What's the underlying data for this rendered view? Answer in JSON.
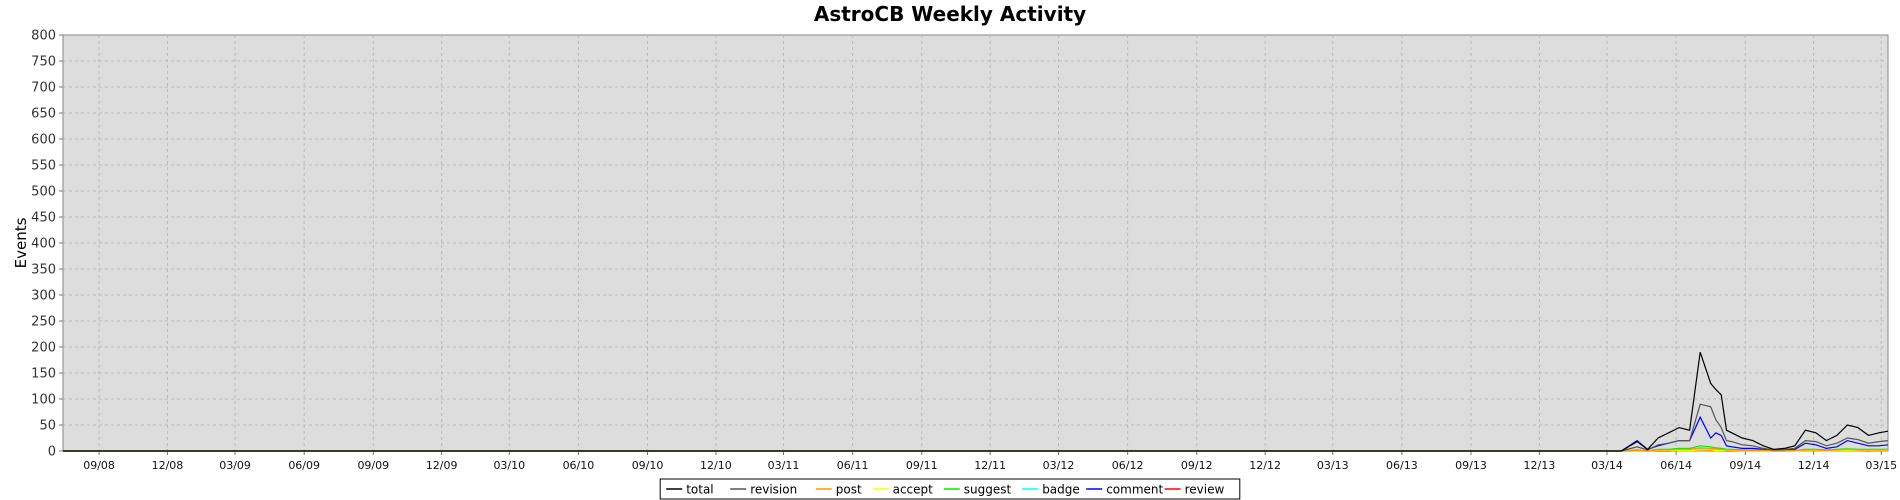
{
  "chart_data": {
    "type": "line",
    "title": "AstroCB Weekly Activity",
    "xlabel": "",
    "ylabel": "Events",
    "ylim": [
      0,
      800
    ],
    "yticks": [
      0,
      50,
      100,
      150,
      200,
      250,
      300,
      350,
      400,
      450,
      500,
      550,
      600,
      650,
      700,
      750,
      800
    ],
    "xlim": [
      "2008-07-15",
      "2015-03-10"
    ],
    "xticks": [
      "09/08",
      "12/08",
      "03/09",
      "06/09",
      "09/09",
      "12/09",
      "03/10",
      "06/10",
      "09/10",
      "12/10",
      "03/11",
      "06/11",
      "09/11",
      "12/11",
      "03/12",
      "06/12",
      "09/12",
      "12/12",
      "03/13",
      "06/13",
      "09/13",
      "12/13",
      "03/14",
      "06/14",
      "09/14",
      "12/14",
      "03/15"
    ],
    "grid": true,
    "legend": "bottom",
    "colors": {
      "total": "#000000",
      "revision": "#555555",
      "post": "#ff9900",
      "accept": "#ffff00",
      "suggest": "#00ee00",
      "badge": "#00ffff",
      "comment": "#0000ff",
      "review": "#ff0000"
    },
    "x": [
      "2014-03-20",
      "2014-04-10",
      "2014-04-24",
      "2014-05-08",
      "2014-05-22",
      "2014-06-05",
      "2014-06-19",
      "2014-07-03",
      "2014-07-17",
      "2014-07-24",
      "2014-07-31",
      "2014-08-07",
      "2014-08-14",
      "2014-08-28",
      "2014-09-11",
      "2014-09-25",
      "2014-10-09",
      "2014-10-23",
      "2014-11-06",
      "2014-11-20",
      "2014-12-04",
      "2014-12-18",
      "2015-01-01",
      "2015-01-15",
      "2015-01-29",
      "2015-02-12",
      "2015-02-26",
      "2015-03-10"
    ],
    "series": [
      {
        "name": "total",
        "values": [
          0,
          18,
          3,
          25,
          35,
          45,
          40,
          190,
          130,
          118,
          108,
          40,
          35,
          25,
          20,
          10,
          3,
          5,
          10,
          40,
          35,
          20,
          30,
          50,
          45,
          30,
          35,
          38
        ]
      },
      {
        "name": "revision",
        "values": [
          0,
          8,
          2,
          12,
          15,
          20,
          20,
          90,
          85,
          60,
          45,
          20,
          18,
          12,
          10,
          5,
          2,
          3,
          5,
          20,
          18,
          10,
          15,
          25,
          22,
          15,
          18,
          20
        ]
      },
      {
        "name": "post",
        "values": [
          0,
          1,
          0,
          2,
          2,
          3,
          3,
          6,
          5,
          4,
          3,
          2,
          2,
          1,
          1,
          1,
          0,
          0,
          1,
          2,
          2,
          1,
          2,
          3,
          2,
          2,
          2,
          2
        ]
      },
      {
        "name": "accept",
        "values": [
          0,
          0,
          0,
          1,
          1,
          1,
          1,
          2,
          2,
          1,
          1,
          1,
          1,
          0,
          0,
          0,
          0,
          0,
          0,
          1,
          1,
          0,
          1,
          1,
          1,
          1,
          1,
          1
        ]
      },
      {
        "name": "suggest",
        "values": [
          0,
          2,
          0,
          3,
          3,
          5,
          5,
          10,
          8,
          6,
          5,
          3,
          3,
          2,
          2,
          1,
          0,
          0,
          1,
          3,
          3,
          2,
          3,
          4,
          3,
          3,
          3,
          3
        ]
      },
      {
        "name": "badge",
        "values": [
          0,
          1,
          0,
          2,
          2,
          2,
          2,
          4,
          3,
          3,
          2,
          2,
          1,
          1,
          1,
          1,
          0,
          0,
          1,
          2,
          2,
          1,
          2,
          2,
          2,
          2,
          2,
          2
        ]
      },
      {
        "name": "comment",
        "values": [
          0,
          20,
          3,
          10,
          15,
          20,
          20,
          65,
          25,
          35,
          30,
          10,
          8,
          5,
          5,
          3,
          1,
          2,
          3,
          15,
          12,
          5,
          8,
          20,
          15,
          10,
          10,
          12
        ]
      },
      {
        "name": "review",
        "values": [
          0,
          0,
          0,
          0,
          0,
          1,
          1,
          2,
          1,
          1,
          1,
          0,
          0,
          0,
          0,
          0,
          0,
          0,
          0,
          1,
          1,
          0,
          1,
          1,
          1,
          0,
          1,
          1
        ]
      }
    ]
  }
}
